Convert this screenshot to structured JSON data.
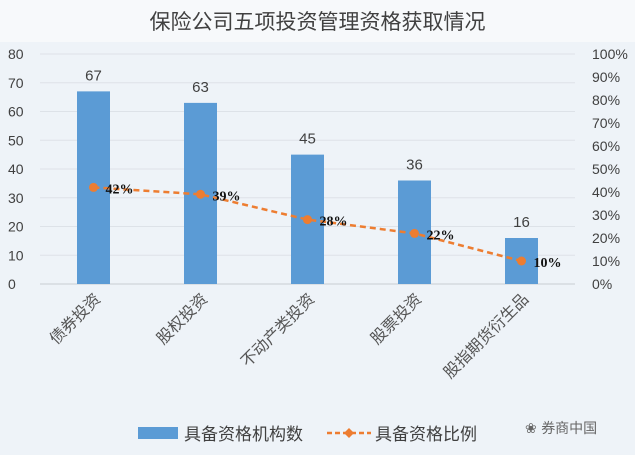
{
  "chart_data": {
    "type": "bar",
    "title": "保险公司五项投资管理资格获取情况",
    "categories": [
      "债券投资",
      "股权投资",
      "不动产类投资",
      "股票投资",
      "股指期货衍生品"
    ],
    "series": [
      {
        "name": "具备资格机构数",
        "type": "bar",
        "axis": "left",
        "values": [
          67,
          63,
          45,
          36,
          16
        ],
        "labels": [
          "67",
          "63",
          "45",
          "36",
          "16"
        ],
        "color": "#5b9bd5"
      },
      {
        "name": "具备资格比例",
        "type": "line",
        "axis": "right",
        "values": [
          0.42,
          0.39,
          0.28,
          0.22,
          0.1
        ],
        "labels": [
          "42%",
          "39%",
          "28%",
          "22%",
          "10%"
        ],
        "color": "#ed7d31"
      }
    ],
    "yleft": {
      "ylim": [
        0,
        80
      ],
      "ticks": [
        "0",
        "10",
        "20",
        "30",
        "40",
        "50",
        "60",
        "70",
        "80"
      ]
    },
    "yright": {
      "ylim": [
        0,
        1
      ],
      "ticks": [
        "0%",
        "10%",
        "20%",
        "30%",
        "40%",
        "50%",
        "60%",
        "70%",
        "80%",
        "90%",
        "100%"
      ]
    },
    "grid": true,
    "legend": "bottom"
  },
  "watermark": "券商中国"
}
